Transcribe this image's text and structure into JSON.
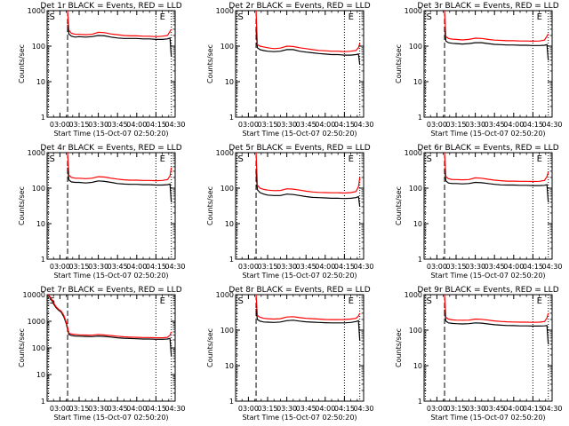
{
  "colors": {
    "events": "#000000",
    "lld": "#ff0000",
    "background": "#ffffff",
    "axes": "#000000"
  },
  "chart_data": [
    {
      "type": "line",
      "title": "Det 1r BLACK = Events, RED = LLD",
      "xlabel": "Start Time (15-Oct-07 02:50:20)",
      "ylabel": "Counts/sec",
      "y_scale": "log",
      "ylim": [
        1,
        1000
      ],
      "y_tick_labels": [
        "1",
        "10",
        "100",
        "1000"
      ],
      "x_tick_labels": [
        "03:00",
        "03:15",
        "03:30",
        "03:45",
        "04:00",
        "04:15",
        "04:30"
      ],
      "x_tick_minutes": [
        0,
        15,
        30,
        45,
        60,
        75,
        90
      ],
      "xlim_minutes": [
        -10,
        90
      ],
      "markers": {
        "S_label": "S",
        "E_label": "E",
        "S_minutes": -9,
        "E_minutes": 87,
        "dashed_minutes": 6,
        "dotted_minutes": [
          75,
          87
        ]
      },
      "x_minutes": [
        6,
        7,
        9,
        12,
        15,
        20,
        25,
        30,
        35,
        40,
        45,
        50,
        55,
        60,
        65,
        70,
        75,
        80,
        84,
        86,
        87
      ],
      "series": [
        {
          "name": "BLACK = Events",
          "values": [
            400,
            220,
            190,
            180,
            185,
            180,
            185,
            200,
            195,
            180,
            170,
            165,
            165,
            165,
            160,
            160,
            155,
            155,
            160,
            170,
            50
          ]
        },
        {
          "name": "RED = LLD",
          "values": [
            1000,
            280,
            230,
            215,
            215,
            210,
            215,
            245,
            240,
            220,
            210,
            200,
            195,
            195,
            190,
            190,
            185,
            190,
            200,
            260,
            300
          ]
        }
      ]
    },
    {
      "type": "line",
      "title": "Det 2r BLACK = Events, RED = LLD",
      "xlabel": "Start Time (15-Oct-07 02:50:20)",
      "ylabel": "Counts/sec",
      "y_scale": "log",
      "ylim": [
        1,
        1000
      ],
      "y_tick_labels": [
        "1",
        "10",
        "100",
        "1000"
      ],
      "x_tick_labels": [
        "03:00",
        "03:15",
        "03:30",
        "03:45",
        "04:00",
        "04:15",
        "04:30"
      ],
      "x_tick_minutes": [
        0,
        15,
        30,
        45,
        60,
        75,
        90
      ],
      "xlim_minutes": [
        -10,
        90
      ],
      "markers": {
        "S_label": "S",
        "E_label": "E",
        "S_minutes": -9,
        "E_minutes": 87,
        "dashed_minutes": 6,
        "dotted_minutes": [
          75,
          87
        ]
      },
      "x_minutes": [
        6,
        7,
        9,
        12,
        15,
        20,
        25,
        30,
        35,
        40,
        45,
        50,
        55,
        60,
        65,
        70,
        75,
        80,
        84,
        86,
        87
      ],
      "series": [
        {
          "name": "BLACK = Events",
          "values": [
            300,
            90,
            80,
            75,
            72,
            70,
            72,
            80,
            80,
            72,
            68,
            65,
            62,
            60,
            58,
            58,
            56,
            56,
            58,
            60,
            30
          ]
        },
        {
          "name": "RED = LLD",
          "values": [
            1000,
            110,
            100,
            95,
            90,
            85,
            88,
            100,
            98,
            90,
            85,
            80,
            76,
            74,
            72,
            72,
            70,
            72,
            76,
            90,
            120
          ]
        }
      ]
    },
    {
      "type": "line",
      "title": "Det 3r BLACK = Events, RED = LLD",
      "xlabel": "Start Time (15-Oct-07 02:50:20)",
      "ylabel": "Counts/sec",
      "y_scale": "log",
      "ylim": [
        1,
        1000
      ],
      "y_tick_labels": [
        "1",
        "10",
        "100",
        "1000"
      ],
      "x_tick_labels": [
        "03:00",
        "03:15",
        "03:30",
        "03:45",
        "04:00",
        "04:15",
        "04:30"
      ],
      "x_tick_minutes": [
        0,
        15,
        30,
        45,
        60,
        75,
        90
      ],
      "xlim_minutes": [
        -10,
        90
      ],
      "markers": {
        "S_label": "S",
        "E_label": "E",
        "S_minutes": -9,
        "E_minutes": 87,
        "dashed_minutes": 6,
        "dotted_minutes": [
          75,
          87
        ]
      },
      "x_minutes": [
        6,
        7,
        9,
        12,
        15,
        20,
        25,
        30,
        35,
        40,
        45,
        50,
        55,
        60,
        65,
        70,
        75,
        80,
        84,
        86,
        87
      ],
      "series": [
        {
          "name": "BLACK = Events",
          "values": [
            350,
            140,
            125,
            120,
            118,
            115,
            118,
            125,
            125,
            118,
            112,
            110,
            108,
            108,
            106,
            106,
            104,
            104,
            106,
            110,
            40
          ]
        },
        {
          "name": "RED = LLD",
          "values": [
            1000,
            185,
            165,
            158,
            155,
            150,
            155,
            168,
            165,
            155,
            148,
            145,
            142,
            142,
            140,
            140,
            138,
            140,
            148,
            190,
            220
          ]
        }
      ]
    },
    {
      "type": "line",
      "title": "Det 4r BLACK = Events, RED = LLD",
      "xlabel": "Start Time (15-Oct-07 02:50:20)",
      "ylabel": "Counts/sec",
      "y_scale": "log",
      "ylim": [
        1,
        1000
      ],
      "y_tick_labels": [
        "1",
        "10",
        "100",
        "1000"
      ],
      "x_tick_labels": [
        "03:00",
        "03:15",
        "03:30",
        "03:45",
        "04:00",
        "04:15",
        "04:30"
      ],
      "x_tick_minutes": [
        0,
        15,
        30,
        45,
        60,
        75,
        90
      ],
      "xlim_minutes": [
        -10,
        90
      ],
      "markers": {
        "S_label": "S",
        "E_label": "E",
        "S_minutes": -9,
        "E_minutes": 87,
        "dashed_minutes": 6,
        "dotted_minutes": [
          75,
          87
        ]
      },
      "x_minutes": [
        6,
        7,
        9,
        12,
        15,
        20,
        25,
        30,
        35,
        40,
        45,
        50,
        55,
        60,
        65,
        70,
        75,
        80,
        84,
        86,
        87
      ],
      "series": [
        {
          "name": "BLACK = Events",
          "values": [
            380,
            170,
            150,
            145,
            145,
            140,
            145,
            160,
            155,
            145,
            135,
            130,
            128,
            128,
            125,
            125,
            122,
            122,
            125,
            130,
            40
          ]
        },
        {
          "name": "RED = LLD",
          "values": [
            1000,
            230,
            200,
            190,
            190,
            185,
            190,
            210,
            205,
            190,
            180,
            172,
            168,
            168,
            165,
            165,
            162,
            165,
            175,
            220,
            380
          ]
        }
      ]
    },
    {
      "type": "line",
      "title": "Det 5r BLACK = Events, RED = LLD",
      "xlabel": "Start Time (15-Oct-07 02:50:20)",
      "ylabel": "Counts/sec",
      "y_scale": "log",
      "ylim": [
        1,
        1000
      ],
      "y_tick_labels": [
        "1",
        "10",
        "100",
        "1000"
      ],
      "x_tick_labels": [
        "03:00",
        "03:15",
        "03:30",
        "03:45",
        "04:00",
        "04:15",
        "04:30"
      ],
      "x_tick_minutes": [
        0,
        15,
        30,
        45,
        60,
        75,
        90
      ],
      "xlim_minutes": [
        -10,
        90
      ],
      "markers": {
        "S_label": "S",
        "E_label": "E",
        "S_minutes": -9,
        "E_minutes": 87,
        "dashed_minutes": 6,
        "dotted_minutes": [
          75,
          87
        ]
      },
      "x_minutes": [
        6,
        7,
        9,
        12,
        15,
        20,
        25,
        30,
        35,
        40,
        45,
        50,
        55,
        60,
        65,
        70,
        75,
        80,
        84,
        86,
        87
      ],
      "series": [
        {
          "name": "BLACK = Events",
          "values": [
            300,
            90,
            75,
            68,
            64,
            62,
            62,
            68,
            66,
            62,
            58,
            55,
            54,
            53,
            52,
            52,
            51,
            52,
            54,
            58,
            30
          ]
        },
        {
          "name": "RED = LLD",
          "values": [
            1000,
            120,
            100,
            92,
            88,
            85,
            86,
            96,
            94,
            88,
            82,
            78,
            76,
            75,
            74,
            74,
            73,
            75,
            80,
            110,
            200
          ]
        }
      ]
    },
    {
      "type": "line",
      "title": "Det 6r BLACK = Events, RED = LLD",
      "xlabel": "Start Time (15-Oct-07 02:50:20)",
      "ylabel": "Counts/sec",
      "y_scale": "log",
      "ylim": [
        1,
        1000
      ],
      "y_tick_labels": [
        "1",
        "10",
        "100",
        "1000"
      ],
      "x_tick_labels": [
        "03:00",
        "03:15",
        "03:30",
        "03:45",
        "04:00",
        "04:15",
        "04:30"
      ],
      "x_tick_minutes": [
        0,
        15,
        30,
        45,
        60,
        75,
        90
      ],
      "xlim_minutes": [
        -10,
        90
      ],
      "markers": {
        "S_label": "S",
        "E_label": "E",
        "S_minutes": -9,
        "E_minutes": 87,
        "dashed_minutes": 6,
        "dotted_minutes": [
          75,
          87
        ]
      },
      "x_minutes": [
        6,
        7,
        9,
        12,
        15,
        20,
        25,
        30,
        35,
        40,
        45,
        50,
        55,
        60,
        65,
        70,
        75,
        80,
        84,
        86,
        87
      ],
      "series": [
        {
          "name": "BLACK = Events",
          "values": [
            360,
            160,
            140,
            135,
            135,
            132,
            135,
            145,
            142,
            135,
            128,
            124,
            122,
            122,
            120,
            120,
            118,
            118,
            120,
            125,
            40
          ]
        },
        {
          "name": "RED = LLD",
          "values": [
            1000,
            210,
            185,
            175,
            175,
            172,
            175,
            195,
            190,
            178,
            168,
            162,
            158,
            158,
            156,
            156,
            154,
            156,
            165,
            210,
            280
          ]
        }
      ]
    },
    {
      "type": "line",
      "title": "Det 7r BLACK = Events, RED = LLD",
      "xlabel": "Start Time (15-Oct-07 02:50:20)",
      "ylabel": "Counts/sec",
      "y_scale": "log",
      "ylim": [
        1,
        10000
      ],
      "y_tick_labels": [
        "1",
        "10",
        "100",
        "1000",
        "10000"
      ],
      "x_tick_labels": [
        "03:00",
        "03:15",
        "03:30",
        "03:45",
        "04:00",
        "04:15",
        "04:30"
      ],
      "x_tick_minutes": [
        0,
        15,
        30,
        45,
        60,
        75,
        90
      ],
      "xlim_minutes": [
        -10,
        90
      ],
      "markers": {
        "S_label": "S",
        "E_label": "E",
        "S_minutes": -9,
        "E_minutes": 87,
        "dashed_minutes": 6,
        "dotted_minutes": [
          75,
          87
        ]
      },
      "x_minutes": [
        -9,
        -7,
        -5,
        -3,
        -1,
        1,
        3,
        5,
        6,
        7,
        9,
        12,
        15,
        20,
        25,
        30,
        35,
        40,
        45,
        50,
        55,
        60,
        65,
        70,
        75,
        80,
        84,
        86,
        87
      ],
      "series": [
        {
          "name": "BLACK = Events",
          "values": [
            10000,
            7000,
            4500,
            3200,
            2600,
            2200,
            1500,
            800,
            500,
            320,
            290,
            280,
            275,
            270,
            265,
            280,
            270,
            255,
            240,
            230,
            225,
            220,
            215,
            215,
            210,
            210,
            215,
            225,
            50
          ]
        },
        {
          "name": "RED = LLD",
          "values": [
            10000,
            7500,
            5000,
            3500,
            2800,
            2400,
            1700,
            900,
            600,
            360,
            330,
            320,
            310,
            305,
            300,
            320,
            305,
            290,
            275,
            262,
            255,
            250,
            245,
            245,
            240,
            240,
            250,
            300,
            400
          ]
        }
      ]
    },
    {
      "type": "line",
      "title": "Det 8r BLACK = Events, RED = LLD",
      "xlabel": "Start Time (15-Oct-07 02:50:20)",
      "ylabel": "Counts/sec",
      "y_scale": "log",
      "ylim": [
        1,
        1000
      ],
      "y_tick_labels": [
        "1",
        "10",
        "100",
        "1000"
      ],
      "x_tick_labels": [
        "03:00",
        "03:15",
        "03:30",
        "03:45",
        "04:00",
        "04:15",
        "04:30"
      ],
      "x_tick_minutes": [
        0,
        15,
        30,
        45,
        60,
        75,
        90
      ],
      "xlim_minutes": [
        -10,
        90
      ],
      "markers": {
        "S_label": "S",
        "E_label": "E",
        "S_minutes": -9,
        "E_minutes": 87,
        "dashed_minutes": 6,
        "dotted_minutes": [
          75,
          87
        ]
      },
      "x_minutes": [
        6,
        7,
        9,
        12,
        15,
        20,
        25,
        30,
        35,
        40,
        45,
        50,
        55,
        60,
        65,
        70,
        75,
        80,
        84,
        86,
        87
      ],
      "series": [
        {
          "name": "BLACK = Events",
          "values": [
            400,
            200,
            180,
            170,
            168,
            165,
            170,
            185,
            190,
            180,
            172,
            168,
            165,
            162,
            160,
            160,
            160,
            165,
            175,
            185,
            50
          ]
        },
        {
          "name": "RED = LLD",
          "values": [
            1000,
            260,
            230,
            215,
            210,
            205,
            210,
            235,
            240,
            225,
            215,
            210,
            205,
            200,
            198,
            198,
            200,
            205,
            215,
            250,
            300
          ]
        }
      ]
    },
    {
      "type": "line",
      "title": "Det 9r BLACK = Events, RED = LLD",
      "xlabel": "Start Time (15-Oct-07 02:50:20)",
      "ylabel": "Counts/sec",
      "y_scale": "log",
      "ylim": [
        1,
        1000
      ],
      "y_tick_labels": [
        "1",
        "10",
        "100",
        "1000"
      ],
      "x_tick_labels": [
        "03:00",
        "03:15",
        "03:30",
        "03:45",
        "04:00",
        "04:15",
        "04:30"
      ],
      "x_tick_minutes": [
        0,
        15,
        30,
        45,
        60,
        75,
        90
      ],
      "xlim_minutes": [
        -10,
        90
      ],
      "markers": {
        "S_label": "S",
        "E_label": "E",
        "S_minutes": -9,
        "E_minutes": 87,
        "dashed_minutes": 6,
        "dotted_minutes": [
          75,
          87
        ]
      },
      "x_minutes": [
        6,
        7,
        9,
        12,
        15,
        20,
        25,
        30,
        35,
        40,
        45,
        50,
        55,
        60,
        65,
        70,
        75,
        80,
        84,
        86,
        87
      ],
      "series": [
        {
          "name": "BLACK = Events",
          "values": [
            380,
            180,
            160,
            155,
            152,
            150,
            152,
            160,
            158,
            150,
            142,
            138,
            135,
            134,
            132,
            132,
            130,
            130,
            132,
            135,
            40
          ]
        },
        {
          "name": "RED = LLD",
          "values": [
            1000,
            230,
            205,
            195,
            192,
            190,
            192,
            205,
            202,
            192,
            182,
            176,
            172,
            170,
            168,
            168,
            166,
            168,
            175,
            220,
            300
          ]
        }
      ]
    }
  ]
}
